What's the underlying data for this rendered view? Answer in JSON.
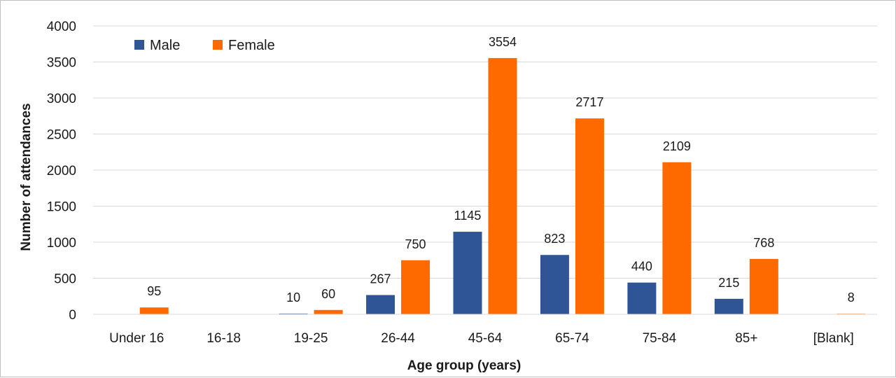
{
  "chart_data": {
    "type": "bar",
    "categories": [
      "Under 16",
      "16-18",
      "19-25",
      "26-44",
      "45-64",
      "65-74",
      "75-84",
      "85+",
      "[Blank]"
    ],
    "series": [
      {
        "name": "Male",
        "color": "#2F5597",
        "values": [
          null,
          null,
          10,
          267,
          1145,
          823,
          440,
          215,
          null
        ]
      },
      {
        "name": "Female",
        "color": "#FF6A00",
        "values": [
          95,
          null,
          60,
          750,
          3554,
          2717,
          2109,
          768,
          8
        ]
      }
    ],
    "xlabel": "Age group  (years)",
    "ylabel": "Number of attendances",
    "ylim": [
      0,
      4000
    ],
    "yticks": [
      0,
      500,
      1000,
      1500,
      2000,
      2500,
      3000,
      3500,
      4000
    ],
    "grid": true,
    "legend": "top-left"
  }
}
